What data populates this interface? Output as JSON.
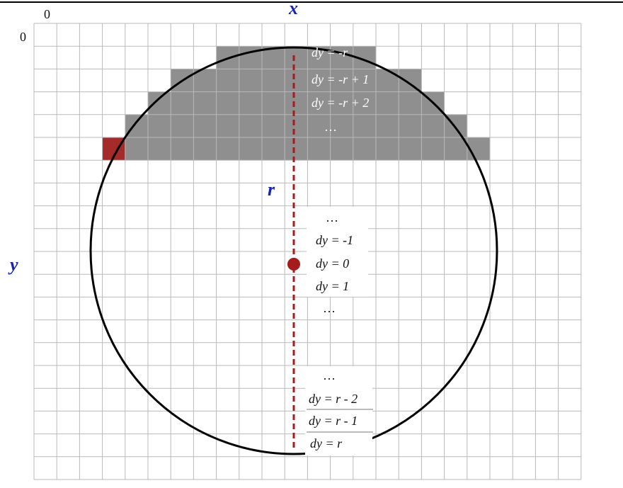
{
  "axes": {
    "origin_x_label": "0",
    "origin_y_label": "0",
    "x_var": "x",
    "y_var": "y",
    "radius_label": "r"
  },
  "grid": {
    "cols": 24,
    "rows": 20
  },
  "colors": {
    "grid_line": "#b9b9b9",
    "shaded_cell": "#8f8f8f",
    "highlight_cell": "#a52a2a",
    "radius_line": "#a51c1c",
    "center_point": "#a51c1c",
    "circle_stroke": "#000000",
    "axis_var": "#1a22b5"
  },
  "row_labels": {
    "top_1": "dy = -r",
    "top_2": "dy = -r + 1",
    "top_3": "dy = -r + 2",
    "top_dots": "…",
    "mid_dots_top": "…",
    "mid_1": "dy = -1",
    "mid_2": "dy =  0",
    "mid_3": "dy =  1",
    "mid_dots_bottom": "…",
    "bot_dots": "…",
    "bot_1": "dy = r - 2",
    "bot_2": "dy = r - 1",
    "bot_3": "dy = r"
  }
}
